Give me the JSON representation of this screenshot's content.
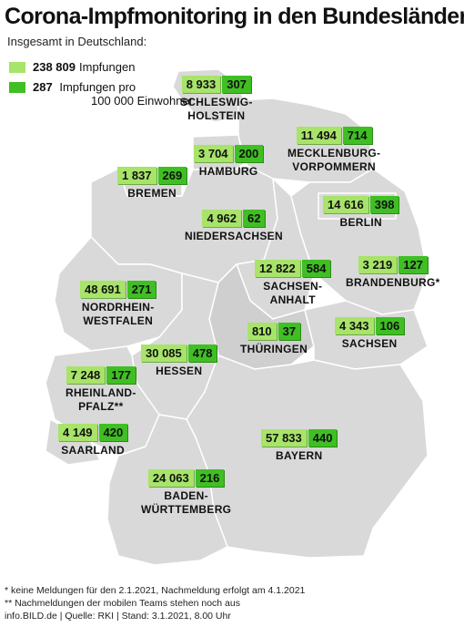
{
  "title": "Corona-Impfmonitoring in den Bundesländern",
  "subtitle": "Insgesamt in Deutschland:",
  "legend": {
    "total_value": "238 809",
    "total_label": "Impfungen",
    "per100k_value": "287",
    "per100k_label": "Impfungen pro",
    "per100k_label_line2": "100 000 Einwohner",
    "color_total": "#a8e36a",
    "color_per100k": "#3fbf23"
  },
  "states": [
    {
      "name": "SCHLESWIG-\nHOLSTEIN",
      "total": "8 933",
      "per100k": "307"
    },
    {
      "name": "MECKLENBURG-\nVORPOMMERN",
      "total": "11 494",
      "per100k": "714"
    },
    {
      "name": "HAMBURG",
      "total": "3 704",
      "per100k": "200"
    },
    {
      "name": "BREMEN",
      "total": "1 837",
      "per100k": "269"
    },
    {
      "name": "BERLIN",
      "total": "14 616",
      "per100k": "398"
    },
    {
      "name": "NIEDERSACHSEN",
      "total": "4 962",
      "per100k": "62"
    },
    {
      "name": "SACHSEN-\nANHALT",
      "total": "12 822",
      "per100k": "584"
    },
    {
      "name": "BRANDENBURG*",
      "total": "3 219",
      "per100k": "127"
    },
    {
      "name": "NORDRHEIN-\nWESTFALEN",
      "total": "48 691",
      "per100k": "271"
    },
    {
      "name": "THÜRINGEN",
      "total": "810",
      "per100k": "37"
    },
    {
      "name": "SACHSEN",
      "total": "4 343",
      "per100k": "106"
    },
    {
      "name": "HESSEN",
      "total": "30 085",
      "per100k": "478"
    },
    {
      "name": "RHEINLAND-\nPFALZ**",
      "total": "7 248",
      "per100k": "177"
    },
    {
      "name": "SAARLAND",
      "total": "4 149",
      "per100k": "420"
    },
    {
      "name": "BAYERN",
      "total": "57 833",
      "per100k": "440"
    },
    {
      "name": "BADEN-\nWÜRTTEMBERG",
      "total": "24 063",
      "per100k": "216"
    }
  ],
  "footnotes": {
    "note1": "* keine Meldungen für den 2.1.2021, Nachmeldung erfolgt am 4.1.2021",
    "note2": "** Nachmeldungen der mobilen Teams stehen noch aus",
    "source": "info.BILD.de | Quelle: RKI | Stand: 3.1.2021, 8.00 Uhr"
  },
  "map_colors": {
    "state_fill": "#d9d9d9",
    "state_fill_dark": "#cfcfcf",
    "border": "#ffffff"
  }
}
